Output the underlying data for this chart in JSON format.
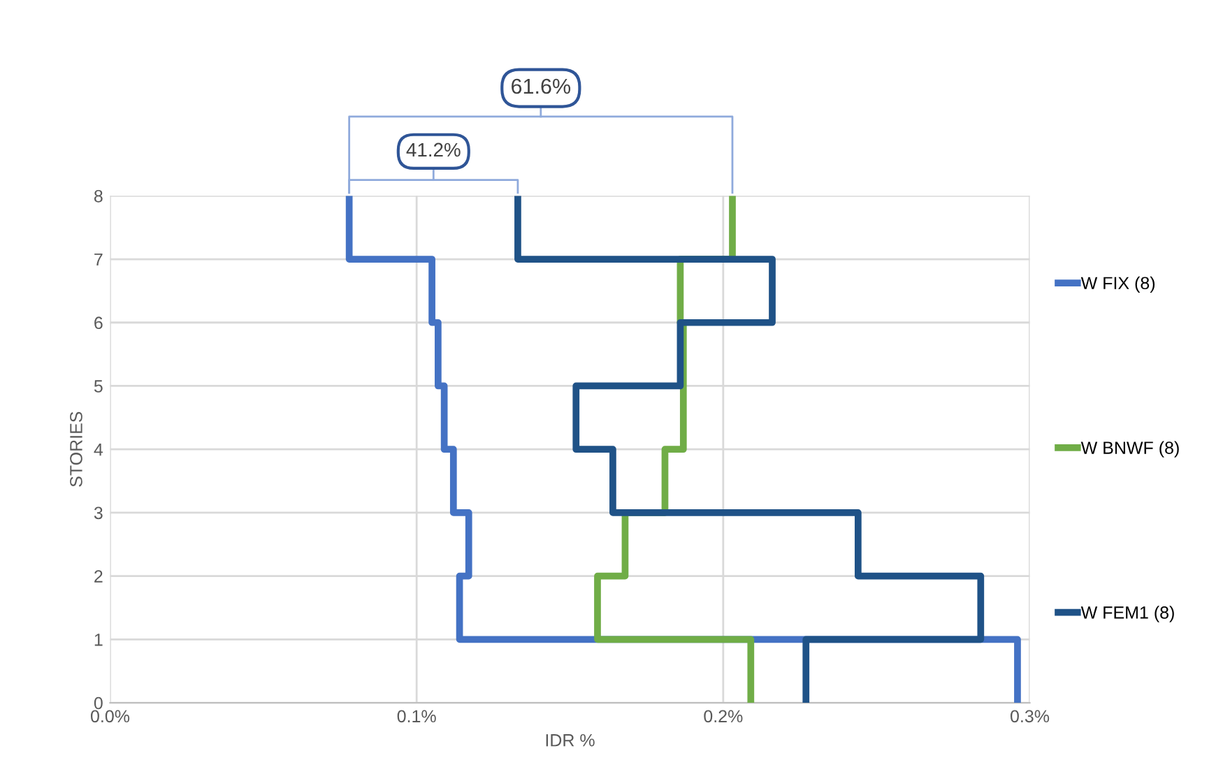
{
  "chart_data": {
    "type": "line",
    "xlabel": "IDR %",
    "ylabel": "STORIES",
    "xlim": [
      0,
      0.3
    ],
    "xticks": [
      {
        "value": 0,
        "label": "0.0%"
      },
      {
        "value": 0.1,
        "label": "0.1%"
      },
      {
        "value": 0.2,
        "label": "0.2%"
      },
      {
        "value": 0.3,
        "label": "0.3%"
      }
    ],
    "ylim": [
      0,
      8
    ],
    "yticks": [
      0,
      1,
      2,
      3,
      4,
      5,
      6,
      7,
      8
    ],
    "grid": true,
    "legend": "right",
    "marker": "none",
    "line_style": "solid",
    "annotations": [
      "61.6%",
      "41.2%"
    ],
    "series": [
      {
        "name": "W FIX (8)",
        "color": "#4472c4",
        "x": [
          0.078,
          0.078,
          0.105,
          0.105,
          0.107,
          0.107,
          0.109,
          0.109,
          0.112,
          0.112,
          0.117,
          0.117,
          0.114,
          0.114,
          0.296,
          0.296
        ],
        "values": [
          8,
          7,
          7,
          6,
          6,
          5,
          5,
          4,
          4,
          3,
          3,
          2,
          2,
          1,
          1,
          0
        ]
      },
      {
        "name": "W BNWF (8)",
        "color": "#70ad47",
        "x": [
          0.203,
          0.203,
          0.186,
          0.186,
          0.187,
          0.187,
          0.187,
          0.187,
          0.181,
          0.181,
          0.168,
          0.168,
          0.159,
          0.159,
          0.209,
          0.209
        ],
        "values": [
          8,
          7,
          7,
          6,
          6,
          5,
          5,
          4,
          4,
          3,
          3,
          2,
          2,
          1,
          1,
          0
        ]
      },
      {
        "name": "W FEM1 (8)",
        "color": "#1f5287",
        "x": [
          0.133,
          0.133,
          0.216,
          0.216,
          0.186,
          0.186,
          0.152,
          0.152,
          0.164,
          0.164,
          0.244,
          0.244,
          0.284,
          0.284,
          0.227,
          0.227
        ],
        "values": [
          8,
          7,
          7,
          6,
          6,
          5,
          5,
          4,
          4,
          3,
          3,
          2,
          2,
          1,
          1,
          0
        ]
      }
    ]
  }
}
